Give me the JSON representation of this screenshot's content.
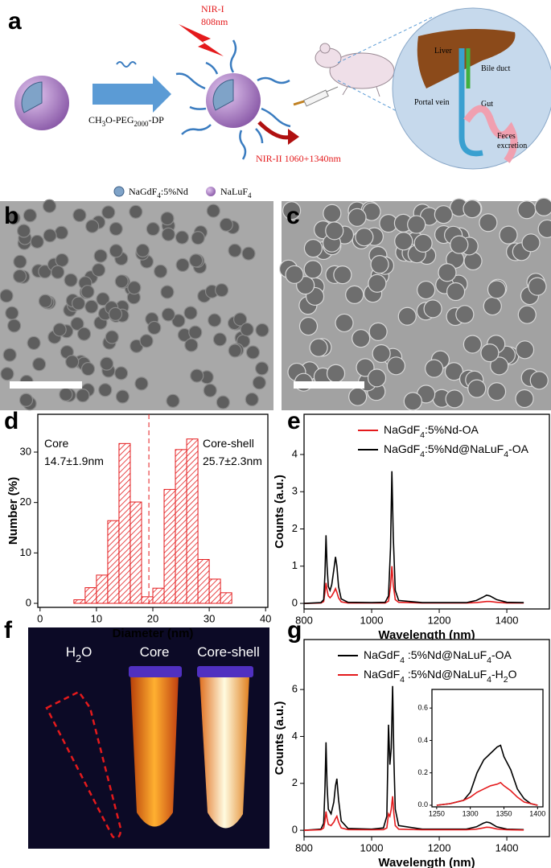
{
  "panel_labels": [
    "a",
    "b",
    "c",
    "d",
    "e",
    "f",
    "g"
  ],
  "schematic": {
    "nir1": "NIR-I",
    "nir1_wavelength": "808nm",
    "ligand": "CH3O-PEG2000-DP",
    "nir2": "NIR-II 1060+1340nm",
    "organs": [
      "Liver",
      "Bile duct",
      "Portal vein",
      "Gut",
      "Feces",
      "excretion"
    ],
    "legend": [
      "NaGdF4:5%Nd",
      "NaLuF4"
    ]
  },
  "photo_labels": [
    "H2O",
    "Core",
    "Core-shell"
  ],
  "chart_data": [
    {
      "type": "histogram",
      "xlabel": "Diameter (nm)",
      "ylabel": "Number (%)",
      "bins": [
        6,
        8,
        10,
        12,
        14,
        16,
        18,
        20,
        22,
        24,
        26,
        28,
        30,
        32,
        34
      ],
      "values": [
        0.7,
        3.1,
        5.6,
        16.4,
        31.7,
        20.1,
        1.3,
        3.0,
        22.6,
        30.5,
        32.6,
        8.7,
        4.8,
        2.1
      ],
      "color": "#e41a1c",
      "hatch": true,
      "vline": 19.3,
      "annotations": [
        "Core",
        "14.7±1.9nm",
        "Core-shell",
        "25.7±2.3nm"
      ],
      "xlim": [
        -0.4,
        40.4
      ],
      "ylim": [
        -0.8,
        37.5
      ],
      "xticks": [
        0,
        10,
        20,
        30,
        40
      ],
      "yticks": [
        0,
        10,
        20,
        30
      ]
    },
    {
      "type": "line",
      "xlabel": "Wavelength (nm)",
      "ylabel": "Counts (a.u.)",
      "x": [
        800,
        850,
        858,
        862,
        865,
        868,
        872,
        877,
        882,
        888,
        893,
        897,
        902,
        910,
        930,
        1000,
        1040,
        1050,
        1056,
        1060,
        1064,
        1070,
        1080,
        1150,
        1280,
        1310,
        1330,
        1340,
        1350,
        1370,
        1400,
        1450
      ],
      "series": [
        {
          "name": "NaGdF4:5%Nd-OA",
          "color": "#e41a1c",
          "values": [
            0,
            0.01,
            0.05,
            0.3,
            0.55,
            0.35,
            0.2,
            0.15,
            0.2,
            0.3,
            0.4,
            0.3,
            0.15,
            0.04,
            0.01,
            0.01,
            0.01,
            0.06,
            0.45,
            1.0,
            0.5,
            0.1,
            0.03,
            0.01,
            0.01,
            0.02,
            0.04,
            0.05,
            0.05,
            0.03,
            0.01,
            0.01
          ]
        },
        {
          "name": "NaGdF4:5%Nd@NaLuF4-OA",
          "color": "#000000",
          "values": [
            0,
            0.02,
            0.1,
            0.8,
            1.83,
            1.0,
            0.45,
            0.35,
            0.5,
            0.9,
            1.25,
            1.0,
            0.45,
            0.12,
            0.03,
            0.02,
            0.03,
            0.2,
            1.5,
            3.55,
            1.8,
            0.35,
            0.08,
            0.02,
            0.02,
            0.08,
            0.17,
            0.22,
            0.2,
            0.1,
            0.03,
            0.02
          ]
        }
      ],
      "xlim": [
        800,
        1526
      ],
      "ylim": [
        -0.15,
        5.08
      ],
      "xticks": [
        800,
        1000,
        1200,
        1400
      ],
      "yticks": [
        0,
        1,
        2,
        3,
        4
      ]
    },
    {
      "type": "line",
      "xlabel": "Wavelength (nm)",
      "ylabel": "Counts (a.u.)",
      "x": [
        800,
        850,
        858,
        862,
        865,
        868,
        872,
        880,
        888,
        893,
        897,
        902,
        910,
        930,
        1000,
        1035,
        1045,
        1050,
        1054,
        1058,
        1062,
        1066,
        1070,
        1080,
        1150,
        1280,
        1310,
        1330,
        1340,
        1350,
        1370,
        1400,
        1450
      ],
      "series": [
        {
          "name": "NaGdF4 :5%Nd@NaLuF4-OA",
          "color": "#000000",
          "values": [
            0,
            0.05,
            0.3,
            1.8,
            3.75,
            1.9,
            0.9,
            0.7,
            1.2,
            1.9,
            2.2,
            1.3,
            0.4,
            0.08,
            0.05,
            0.1,
            0.6,
            4.5,
            2.8,
            3.5,
            6.15,
            3.0,
            0.9,
            0.2,
            0.05,
            0.05,
            0.15,
            0.3,
            0.35,
            0.32,
            0.15,
            0.05,
            0.03
          ]
        },
        {
          "name": "NaGdF4 :5%Nd@NaLuF4-H2O",
          "color": "#e41a1c",
          "values": [
            0,
            0.02,
            0.1,
            0.4,
            0.8,
            0.5,
            0.25,
            0.2,
            0.35,
            0.5,
            0.6,
            0.35,
            0.1,
            0.03,
            0.02,
            0.03,
            0.1,
            0.7,
            0.6,
            0.9,
            1.45,
            0.7,
            0.2,
            0.05,
            0.02,
            0.02,
            0.05,
            0.1,
            0.13,
            0.12,
            0.06,
            0.02,
            0.01
          ]
        }
      ],
      "xlim": [
        800,
        1526
      ],
      "ylim": [
        -0.27,
        8.13
      ],
      "xticks": [
        800,
        1000,
        1200,
        1400
      ],
      "yticks": [
        0,
        2,
        4,
        6
      ]
    },
    {
      "type": "line",
      "x": [
        1250,
        1270,
        1290,
        1300,
        1310,
        1320,
        1330,
        1340,
        1345,
        1350,
        1360,
        1370,
        1380,
        1390,
        1400
      ],
      "series": [
        {
          "color": "#000000",
          "values": [
            0,
            0.01,
            0.03,
            0.08,
            0.2,
            0.28,
            0.32,
            0.36,
            0.37,
            0.3,
            0.22,
            0.1,
            0.04,
            0.01,
            0
          ]
        },
        {
          "color": "#e41a1c",
          "values": [
            0,
            0.01,
            0.03,
            0.05,
            0.08,
            0.1,
            0.12,
            0.13,
            0.14,
            0.12,
            0.09,
            0.05,
            0.02,
            0.01,
            0
          ]
        }
      ],
      "xlim": [
        1243,
        1408
      ],
      "ylim": [
        -0.01,
        0.715
      ],
      "xticks": [
        1250,
        1300,
        1350,
        1400
      ],
      "yticks": [
        {
          "value": 0,
          "label": "0.0"
        },
        0.2,
        0.4,
        0.6
      ]
    }
  ]
}
